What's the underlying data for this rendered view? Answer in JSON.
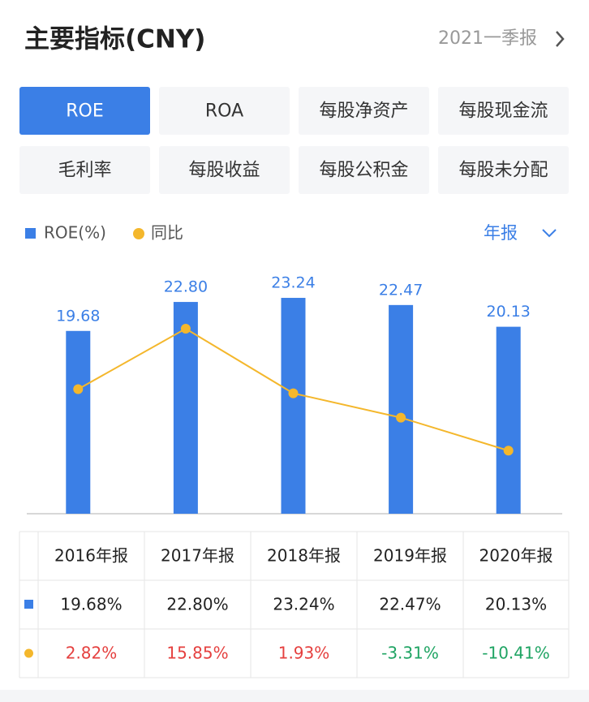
{
  "header": {
    "title": "主要指标(CNY)",
    "period": "2021一季报"
  },
  "tabs": [
    "ROE",
    "ROA",
    "每股净资产",
    "每股现金流",
    "毛利率",
    "每股收益",
    "每股公积金",
    "每股未分配"
  ],
  "period_selector": "年报",
  "chart_data": {
    "type": "bar",
    "categories": [
      "2016年报",
      "2017年报",
      "2018年报",
      "2019年报",
      "2020年报"
    ],
    "series": [
      {
        "name": "ROE(%)",
        "color": "#3b7fe6",
        "values": [
          19.68,
          22.8,
          23.24,
          22.47,
          20.13
        ],
        "value_labels": [
          "19.68",
          "22.80",
          "23.24",
          "22.47",
          "20.13"
        ]
      },
      {
        "name": "同比",
        "color": "#f4b72c",
        "type": "line",
        "axis": "y2",
        "values": [
          2.82,
          15.85,
          1.93,
          -3.31,
          -10.41
        ]
      }
    ],
    "ylim": [
      0,
      27
    ],
    "y2lim": [
      -24,
      30
    ]
  },
  "table": {
    "rows": [
      [
        "19.68%",
        "22.80%",
        "23.24%",
        "22.47%",
        "20.13%"
      ],
      [
        "2.82%",
        "15.85%",
        "1.93%",
        "-3.31%",
        "-10.41%"
      ]
    ]
  }
}
